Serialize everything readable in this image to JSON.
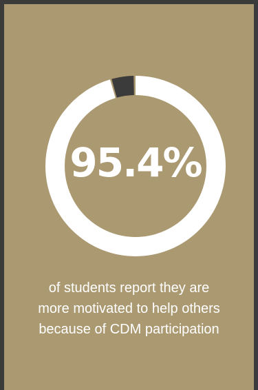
{
  "stat": {
    "percent_label": "95.4%",
    "percent_value": 95.4,
    "caption_lines": [
      "of students report they are",
      "more motivated to help others",
      "because of CDM participation"
    ]
  },
  "colors": {
    "background": "#ab9971",
    "frame": "#3b3b3b",
    "ring_fill": "#ffffff",
    "ring_remainder": "#3b3b3b",
    "text": "#ffffff"
  }
}
